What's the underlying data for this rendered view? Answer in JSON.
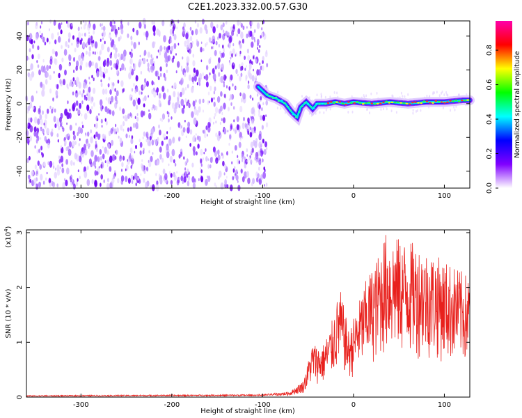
{
  "title": "C2E1.2023.332.00.57.G30",
  "chart_data": [
    {
      "type": "heatmap",
      "xlabel": "Height of straight line (km)",
      "ylabel": "Frequency (Hz)",
      "xlim": [
        -360,
        128
      ],
      "ylim": [
        -50,
        49
      ],
      "xticks": [
        -300,
        -200,
        -100,
        0,
        100
      ],
      "yticks": [
        -40,
        -20,
        0,
        20,
        40
      ],
      "noise_region_x": [
        -360,
        -95
      ],
      "ridge": {
        "name": "",
        "x": [
          -105,
          -95,
          -85,
          -75,
          -68,
          -62,
          -58,
          -52,
          -45,
          -40,
          -30,
          -20,
          -10,
          0,
          20,
          40,
          60,
          80,
          100,
          120,
          128
        ],
        "y": [
          10,
          5,
          3,
          0,
          -5,
          -8,
          -2,
          1,
          -3,
          0,
          0,
          1,
          0,
          1,
          0,
          1,
          0,
          1,
          1,
          2,
          2
        ]
      },
      "colorbar": {
        "label": "Normalized spectral amplitude",
        "range": [
          0,
          0.97
        ],
        "ticks": [
          "0.0",
          "0.2",
          "0.4",
          "0.6",
          "0.8"
        ],
        "tick_values": [
          0.0,
          0.2,
          0.4,
          0.6,
          0.8
        ],
        "colors": [
          "#ffffff",
          "#8000ff",
          "#0000ff",
          "#00ffff",
          "#00ff00",
          "#ffff00",
          "#ff0000",
          "#ff00aa"
        ]
      }
    },
    {
      "type": "line",
      "xlabel": "Height of straight line (km)",
      "ylabel": "SNR (10 * v/v)",
      "y_multiplier_label": "(x10",
      "y_multiplier_exp": "4",
      "y_multiplier_close": ")",
      "xlim": [
        -360,
        128
      ],
      "ylim": [
        0,
        3.05
      ],
      "xticks": [
        -300,
        -200,
        -100,
        0,
        100
      ],
      "yticks": [
        0,
        1,
        2,
        3
      ],
      "color": "#e8201c",
      "envelope": {
        "x": [
          -360,
          -100,
          -70,
          -55,
          -45,
          -35,
          -25,
          -15,
          -5,
          5,
          15,
          25,
          35,
          50,
          70,
          90,
          110,
          128
        ],
        "y": [
          0.03,
          0.05,
          0.1,
          0.3,
          1.0,
          0.9,
          1.3,
          2.0,
          1.2,
          1.7,
          2.2,
          2.5,
          3.0,
          2.9,
          2.8,
          2.6,
          2.4,
          2.2
        ]
      }
    }
  ]
}
